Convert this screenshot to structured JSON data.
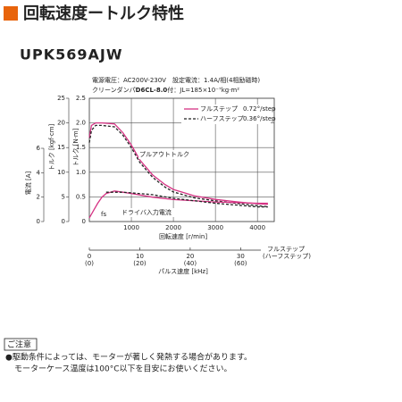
{
  "header": {
    "title": "回転速度ートルク特性",
    "model": "UPK569AJW"
  },
  "specs": {
    "line1": "電源電圧：AC200V-230V　設定電流：1.4A/相(4相励磁時)",
    "damper_prefix": "クリーンダンパ",
    "damper_model": "D6CL-8.0",
    "damper_suffix": "付：JL=185×10⁻⁷kg·m²"
  },
  "chart_data": {
    "type": "line",
    "xlabel": "回転速度 [r/min]",
    "x2label": "パルス速度 [kHz]",
    "x2note": [
      "フルステップ",
      "(ハーフステップ)"
    ],
    "ylabel": "トルク [N·m]",
    "y2label": "トルク [kgf·cm]",
    "y3label": "電流 [A]",
    "xlim": [
      0,
      4400
    ],
    "xticks": [
      1000,
      2000,
      3000,
      4000
    ],
    "x2lim": [
      0,
      36.67
    ],
    "x2ticks": [
      0,
      10,
      20,
      30
    ],
    "x3lim": [
      0,
      73.33
    ],
    "x3ticks": [
      {
        "value": 0,
        "label": "(0)"
      },
      {
        "value": 20,
        "label": "(20)"
      },
      {
        "value": 40,
        "label": "(40)"
      },
      {
        "value": 60,
        "label": "(60)"
      }
    ],
    "ylim": [
      0,
      2.5
    ],
    "yticks": [
      0,
      0.5,
      {
        "value": 1,
        "label": "1.0"
      },
      1.5,
      {
        "value": 2,
        "label": "2.0"
      },
      2.5
    ],
    "y2lim": [
      0,
      25
    ],
    "y2ticks": [
      0,
      5,
      10,
      15,
      20,
      25
    ],
    "y3lim": [
      0,
      10.1
    ],
    "y3ticks": [
      0,
      2,
      4,
      6
    ],
    "grid": true,
    "series": [
      {
        "name": "フルステップ",
        "step": "0.72°/step",
        "color": "#d63384",
        "dash": false,
        "x": [
          0,
          50,
          150,
          300,
          600,
          800,
          1000,
          1200,
          1500,
          1800,
          2000,
          2500,
          3000,
          3500,
          4000,
          4250
        ],
        "values": [
          1.7,
          1.95,
          2.0,
          2.0,
          1.98,
          1.8,
          1.55,
          1.25,
          0.95,
          0.75,
          0.65,
          0.52,
          0.45,
          0.4,
          0.36,
          0.35
        ]
      },
      {
        "name": "ハーフステップ",
        "step": "0.36°/step",
        "color": "#222222",
        "dash": true,
        "x": [
          0,
          50,
          150,
          300,
          600,
          800,
          1000,
          1200,
          1500,
          1800,
          2000,
          2500,
          3000,
          3500,
          4000,
          4250
        ],
        "values": [
          1.6,
          1.85,
          1.95,
          1.95,
          1.92,
          1.75,
          1.5,
          1.2,
          0.9,
          0.7,
          0.6,
          0.48,
          0.42,
          0.37,
          0.32,
          0.3
        ]
      },
      {
        "axis": "y3",
        "color": "#d63384",
        "dash": false,
        "x": [
          0,
          100,
          200,
          300,
          400,
          500,
          600,
          800,
          1000,
          1500,
          2000,
          3000,
          4000,
          4250
        ],
        "values": [
          0.3,
          0.9,
          1.5,
          2.0,
          2.3,
          2.4,
          2.5,
          2.4,
          2.3,
          2.0,
          1.8,
          1.6,
          1.5,
          1.5
        ]
      },
      {
        "axis": "y3",
        "color": "#222222",
        "dash": true,
        "x": [
          400,
          600,
          800,
          1000,
          1500,
          2000,
          3000,
          4000,
          4250
        ],
        "values": [
          2.4,
          2.4,
          2.4,
          2.35,
          2.2,
          1.9,
          1.5,
          1.2,
          1.2
        ]
      }
    ],
    "annotations": [
      "プルアウトトルク",
      "ドライバ入力電流",
      "fs"
    ]
  },
  "notice": {
    "title": "ご注意",
    "lines": [
      "●駆動条件によっては、モーターが著しく発熱する場合があります。",
      "モーターケース温度は100°C以下を目安にお使いください。"
    ]
  }
}
